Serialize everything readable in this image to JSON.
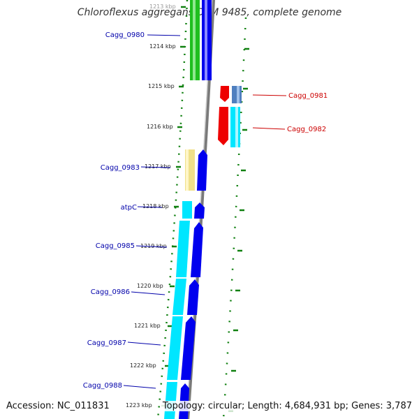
{
  "header": {
    "title": "Chloroflexus aggregans DSM 9485, complete genome"
  },
  "footer": {
    "accession": "Accession: NC_011831",
    "summary": "Topology: circular; Length: 4,684,931 bp; Genes: 3,787"
  },
  "ticks": [
    "1213 kbp",
    "1214 kbp",
    "1215 kbp",
    "1216 kbp",
    "1217 kbp",
    "1218 kbp",
    "1219 kbp",
    "1220 kbp",
    "1221 kbp",
    "1222 kbp",
    "1223 kbp"
  ],
  "genes": [
    {
      "name": "Cagg_0980",
      "strand": "left",
      "color": "#0000aa"
    },
    {
      "name": "Cagg_0981",
      "strand": "right",
      "color": "#cc0000"
    },
    {
      "name": "Cagg_0982",
      "strand": "right",
      "color": "#cc0000"
    },
    {
      "name": "Cagg_0983",
      "strand": "left",
      "color": "#0000aa"
    },
    {
      "name": "atpC",
      "strand": "left",
      "color": "#0000aa"
    },
    {
      "name": "Cagg_0985",
      "strand": "left",
      "color": "#0000aa"
    },
    {
      "name": "Cagg_0986",
      "strand": "left",
      "color": "#0000aa"
    },
    {
      "name": "Cagg_0987",
      "strand": "left",
      "color": "#0000aa"
    },
    {
      "name": "Cagg_0988",
      "strand": "left",
      "color": "#0000aa"
    }
  ],
  "colors": {
    "cds": "#0000ee",
    "gene": "#00e6ff",
    "rrna_like": "#1fbf1f",
    "trna_like": "#f0e08a",
    "right_cds": "#ee0000",
    "right_steel": "#4f7fbf",
    "backbone": "#888888",
    "dots": "#108010"
  }
}
